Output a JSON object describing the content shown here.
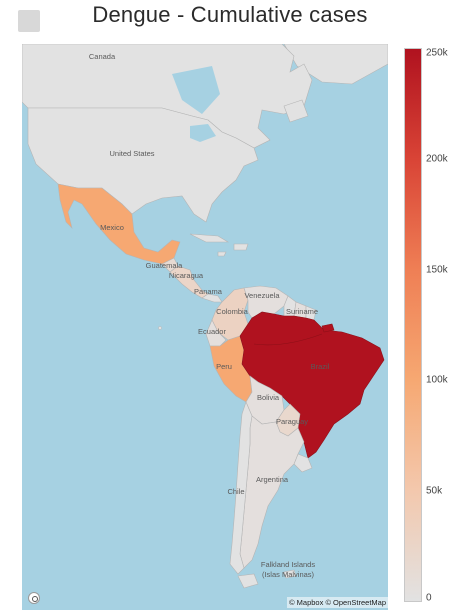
{
  "title": "Dengue - Cumulative cases",
  "attribution": "© Mapbox © OpenStreetMap",
  "icons": {
    "corner": "menu-icon",
    "logo": "mapbox-logo-icon"
  },
  "colors": {
    "ocean": "#a6d1e2",
    "no_data_land": "#e2e2e2",
    "border": "#b5b5b5",
    "scale_low": "#e2e2e2",
    "scale_high": "#b0121f"
  },
  "chart_data": {
    "type": "choropleth",
    "title": "Dengue - Cumulative cases",
    "colorbar": {
      "min": 0,
      "max": 250000,
      "ticks": [
        {
          "value": 0,
          "label": "0"
        },
        {
          "value": 50000,
          "label": "50k"
        },
        {
          "value": 100000,
          "label": "100k"
        },
        {
          "value": 150000,
          "label": "150k"
        },
        {
          "value": 200000,
          "label": "200k"
        },
        {
          "value": 250000,
          "label": "250k"
        }
      ]
    },
    "countries": [
      {
        "name": "Brazil",
        "value": 250000
      },
      {
        "name": "Mexico",
        "value": 100000
      },
      {
        "name": "Peru",
        "value": 100000
      },
      {
        "name": "Colombia",
        "value": 30000
      },
      {
        "name": "Paraguay",
        "value": 20000
      },
      {
        "name": "Nicaragua",
        "value": 25000
      },
      {
        "name": "Guatemala",
        "value": 15000
      },
      {
        "name": "Venezuela",
        "value": 5000
      },
      {
        "name": "Ecuador",
        "value": 5000
      },
      {
        "name": "Bolivia",
        "value": 5000
      },
      {
        "name": "Argentina",
        "value": 5000
      },
      {
        "name": "Chile",
        "value": 0
      },
      {
        "name": "United States",
        "value": 0
      },
      {
        "name": "Canada",
        "value": 0
      },
      {
        "name": "Suriname",
        "value": 5000
      },
      {
        "name": "Falkland Islands (Islas Malvinas)",
        "value": 0
      }
    ]
  },
  "labels": {
    "canada": "Canada",
    "united_states": "United States",
    "mexico": "Mexico",
    "guatemala": "Guatemala",
    "nicaragua": "Nicaragua",
    "panama": "Panama",
    "venezuela": "Venezuela",
    "colombia": "Colombia",
    "suriname": "Suriname",
    "ecuador": "Ecuador",
    "peru": "Peru",
    "brazil": "Brazil",
    "bolivia": "Bolivia",
    "paraguay": "Paraguay",
    "argentina": "Argentina",
    "chile": "Chile",
    "falkland_1": "Falkland Islands",
    "falkland_2": "(Islas Malvinas)"
  }
}
